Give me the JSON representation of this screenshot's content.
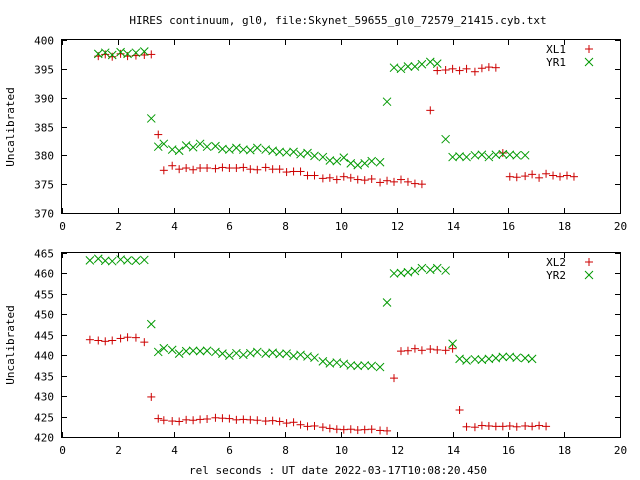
{
  "title": "HIRES continuum, gl0, file:Skynet_59655_gl0_72579_21415.cyb.txt",
  "colors": {
    "red": "#cc0000",
    "green": "#009900"
  },
  "chart_data": [
    {
      "type": "scatter",
      "ylabel": "Uncalibrated",
      "xlim": [
        0,
        20
      ],
      "ylim": [
        370,
        400
      ],
      "xticks": [
        0,
        2,
        4,
        6,
        8,
        10,
        12,
        14,
        16,
        18,
        20
      ],
      "yticks": [
        370,
        375,
        380,
        385,
        390,
        395,
        400
      ],
      "legend_position": "top-right",
      "x": [
        1.0,
        1.3,
        1.55,
        1.8,
        2.1,
        2.35,
        2.65,
        2.95,
        3.2,
        3.45,
        3.65,
        3.95,
        4.2,
        4.45,
        4.7,
        4.95,
        5.2,
        5.5,
        5.75,
        6.0,
        6.25,
        6.5,
        6.75,
        7.0,
        7.3,
        7.55,
        7.8,
        8.05,
        8.3,
        8.55,
        8.8,
        9.05,
        9.35,
        9.6,
        9.85,
        10.1,
        10.35,
        10.6,
        10.85,
        11.1,
        11.4,
        11.65,
        11.9,
        12.15,
        12.4,
        12.65,
        12.9,
        13.2,
        13.45,
        13.75,
        14.0,
        14.25,
        14.5,
        14.8,
        15.05,
        15.3,
        15.55,
        15.8,
        16.05,
        16.3,
        16.6,
        16.85,
        17.1,
        17.35,
        17.6,
        17.85,
        18.1,
        18.35,
        18.65,
        18.9
      ],
      "series": [
        {
          "name": "XL1",
          "color_key": "red",
          "marker": "plus",
          "values": [
            null,
            397.2,
            397.5,
            397.1,
            397.6,
            397.2,
            397.3,
            397.4,
            397.5,
            383.6,
            377.4,
            378.2,
            377.6,
            377.8,
            377.5,
            377.8,
            377.8,
            377.7,
            377.9,
            377.8,
            377.8,
            377.9,
            377.6,
            377.5,
            377.9,
            377.6,
            377.6,
            377.1,
            377.2,
            377.2,
            376.5,
            376.5,
            376.0,
            376.1,
            375.8,
            376.3,
            376.1,
            375.8,
            375.7,
            375.9,
            375.3,
            375.6,
            375.4,
            375.8,
            375.4,
            375.1,
            375.0,
            387.8,
            394.7,
            394.8,
            395.0,
            394.7,
            395.0,
            394.5,
            395.1,
            395.3,
            395.2,
            380.4,
            376.3,
            376.2,
            376.4,
            376.7,
            376.1,
            376.8,
            376.5,
            376.3,
            376.5,
            376.3,
            null,
            null
          ]
        },
        {
          "name": "YR1",
          "color_key": "green",
          "marker": "cross",
          "values": [
            null,
            397.6,
            397.8,
            397.4,
            397.9,
            397.6,
            397.8,
            398.0,
            386.4,
            381.5,
            382.0,
            381.0,
            380.8,
            381.7,
            381.4,
            382.0,
            381.5,
            381.6,
            381.1,
            381.0,
            381.3,
            381.0,
            380.9,
            381.3,
            381.0,
            380.8,
            380.6,
            380.5,
            380.6,
            380.2,
            380.4,
            379.9,
            379.7,
            379.1,
            379.0,
            379.6,
            378.6,
            378.3,
            378.6,
            379.0,
            378.8,
            389.3,
            395.2,
            395.0,
            395.4,
            395.4,
            395.8,
            396.2,
            395.9,
            382.8,
            379.7,
            379.8,
            379.7,
            380.0,
            380.1,
            379.7,
            380.1,
            380.2,
            380.1,
            380.0,
            380.0,
            null,
            null,
            null,
            null,
            null,
            null,
            null,
            null,
            null
          ]
        }
      ]
    },
    {
      "type": "scatter",
      "ylabel": "Uncalibrated",
      "xlabel": "rel seconds : UT date 2022-03-17T10:08:20.450",
      "xlim": [
        0,
        20
      ],
      "ylim": [
        420,
        465
      ],
      "xticks": [
        0,
        2,
        4,
        6,
        8,
        10,
        12,
        14,
        16,
        18,
        20
      ],
      "yticks": [
        420,
        425,
        430,
        435,
        440,
        445,
        450,
        455,
        460,
        465
      ],
      "legend_position": "top-right",
      "x": [
        1.0,
        1.3,
        1.55,
        1.8,
        2.1,
        2.35,
        2.65,
        2.95,
        3.2,
        3.45,
        3.65,
        3.95,
        4.2,
        4.45,
        4.7,
        4.95,
        5.2,
        5.5,
        5.75,
        6.0,
        6.25,
        6.5,
        6.75,
        7.0,
        7.3,
        7.55,
        7.8,
        8.05,
        8.3,
        8.55,
        8.8,
        9.05,
        9.35,
        9.6,
        9.85,
        10.1,
        10.35,
        10.6,
        10.85,
        11.1,
        11.4,
        11.65,
        11.9,
        12.15,
        12.4,
        12.65,
        12.9,
        13.2,
        13.45,
        13.75,
        14.0,
        14.25,
        14.5,
        14.8,
        15.05,
        15.3,
        15.55,
        15.8,
        16.05,
        16.3,
        16.6,
        16.85,
        17.1,
        17.35,
        17.6,
        17.85,
        18.1,
        18.35,
        18.65,
        18.9
      ],
      "series": [
        {
          "name": "XL2",
          "color_key": "red",
          "marker": "plus",
          "values": [
            443.8,
            443.6,
            443.4,
            443.6,
            444.1,
            444.4,
            444.3,
            443.2,
            429.8,
            424.5,
            424.1,
            423.9,
            423.8,
            424.2,
            424.1,
            424.3,
            424.4,
            424.7,
            424.6,
            424.5,
            424.2,
            424.3,
            424.2,
            424.1,
            423.9,
            424.0,
            423.8,
            423.4,
            423.6,
            423.0,
            422.6,
            422.7,
            422.4,
            422.1,
            421.9,
            421.8,
            421.9,
            421.7,
            421.8,
            421.9,
            421.6,
            421.5,
            434.4,
            441.0,
            441.1,
            441.6,
            441.2,
            441.5,
            441.3,
            441.2,
            441.6,
            426.6,
            422.5,
            422.4,
            422.8,
            422.7,
            422.6,
            422.6,
            422.7,
            422.5,
            422.7,
            422.6,
            422.8,
            422.6,
            null,
            null,
            null,
            null,
            null,
            null
          ]
        },
        {
          "name": "YR2",
          "color_key": "green",
          "marker": "cross",
          "values": [
            463.2,
            463.6,
            463.1,
            463.0,
            463.4,
            463.2,
            463.1,
            463.3,
            447.6,
            440.8,
            441.7,
            441.3,
            440.4,
            441.0,
            441.1,
            441.0,
            441.1,
            440.8,
            440.4,
            439.9,
            440.5,
            440.1,
            440.5,
            440.8,
            440.4,
            440.6,
            440.3,
            440.4,
            439.8,
            440.1,
            439.7,
            439.4,
            438.5,
            438.0,
            438.2,
            437.9,
            437.5,
            437.4,
            437.5,
            437.4,
            437.1,
            452.9,
            460.0,
            460.1,
            460.3,
            460.6,
            461.3,
            460.9,
            461.3,
            460.7,
            442.8,
            439.1,
            438.7,
            439.0,
            438.9,
            439.1,
            439.3,
            439.6,
            439.6,
            439.4,
            439.3,
            439.1,
            null,
            null,
            null,
            null,
            null,
            null,
            null,
            null
          ]
        }
      ]
    }
  ]
}
